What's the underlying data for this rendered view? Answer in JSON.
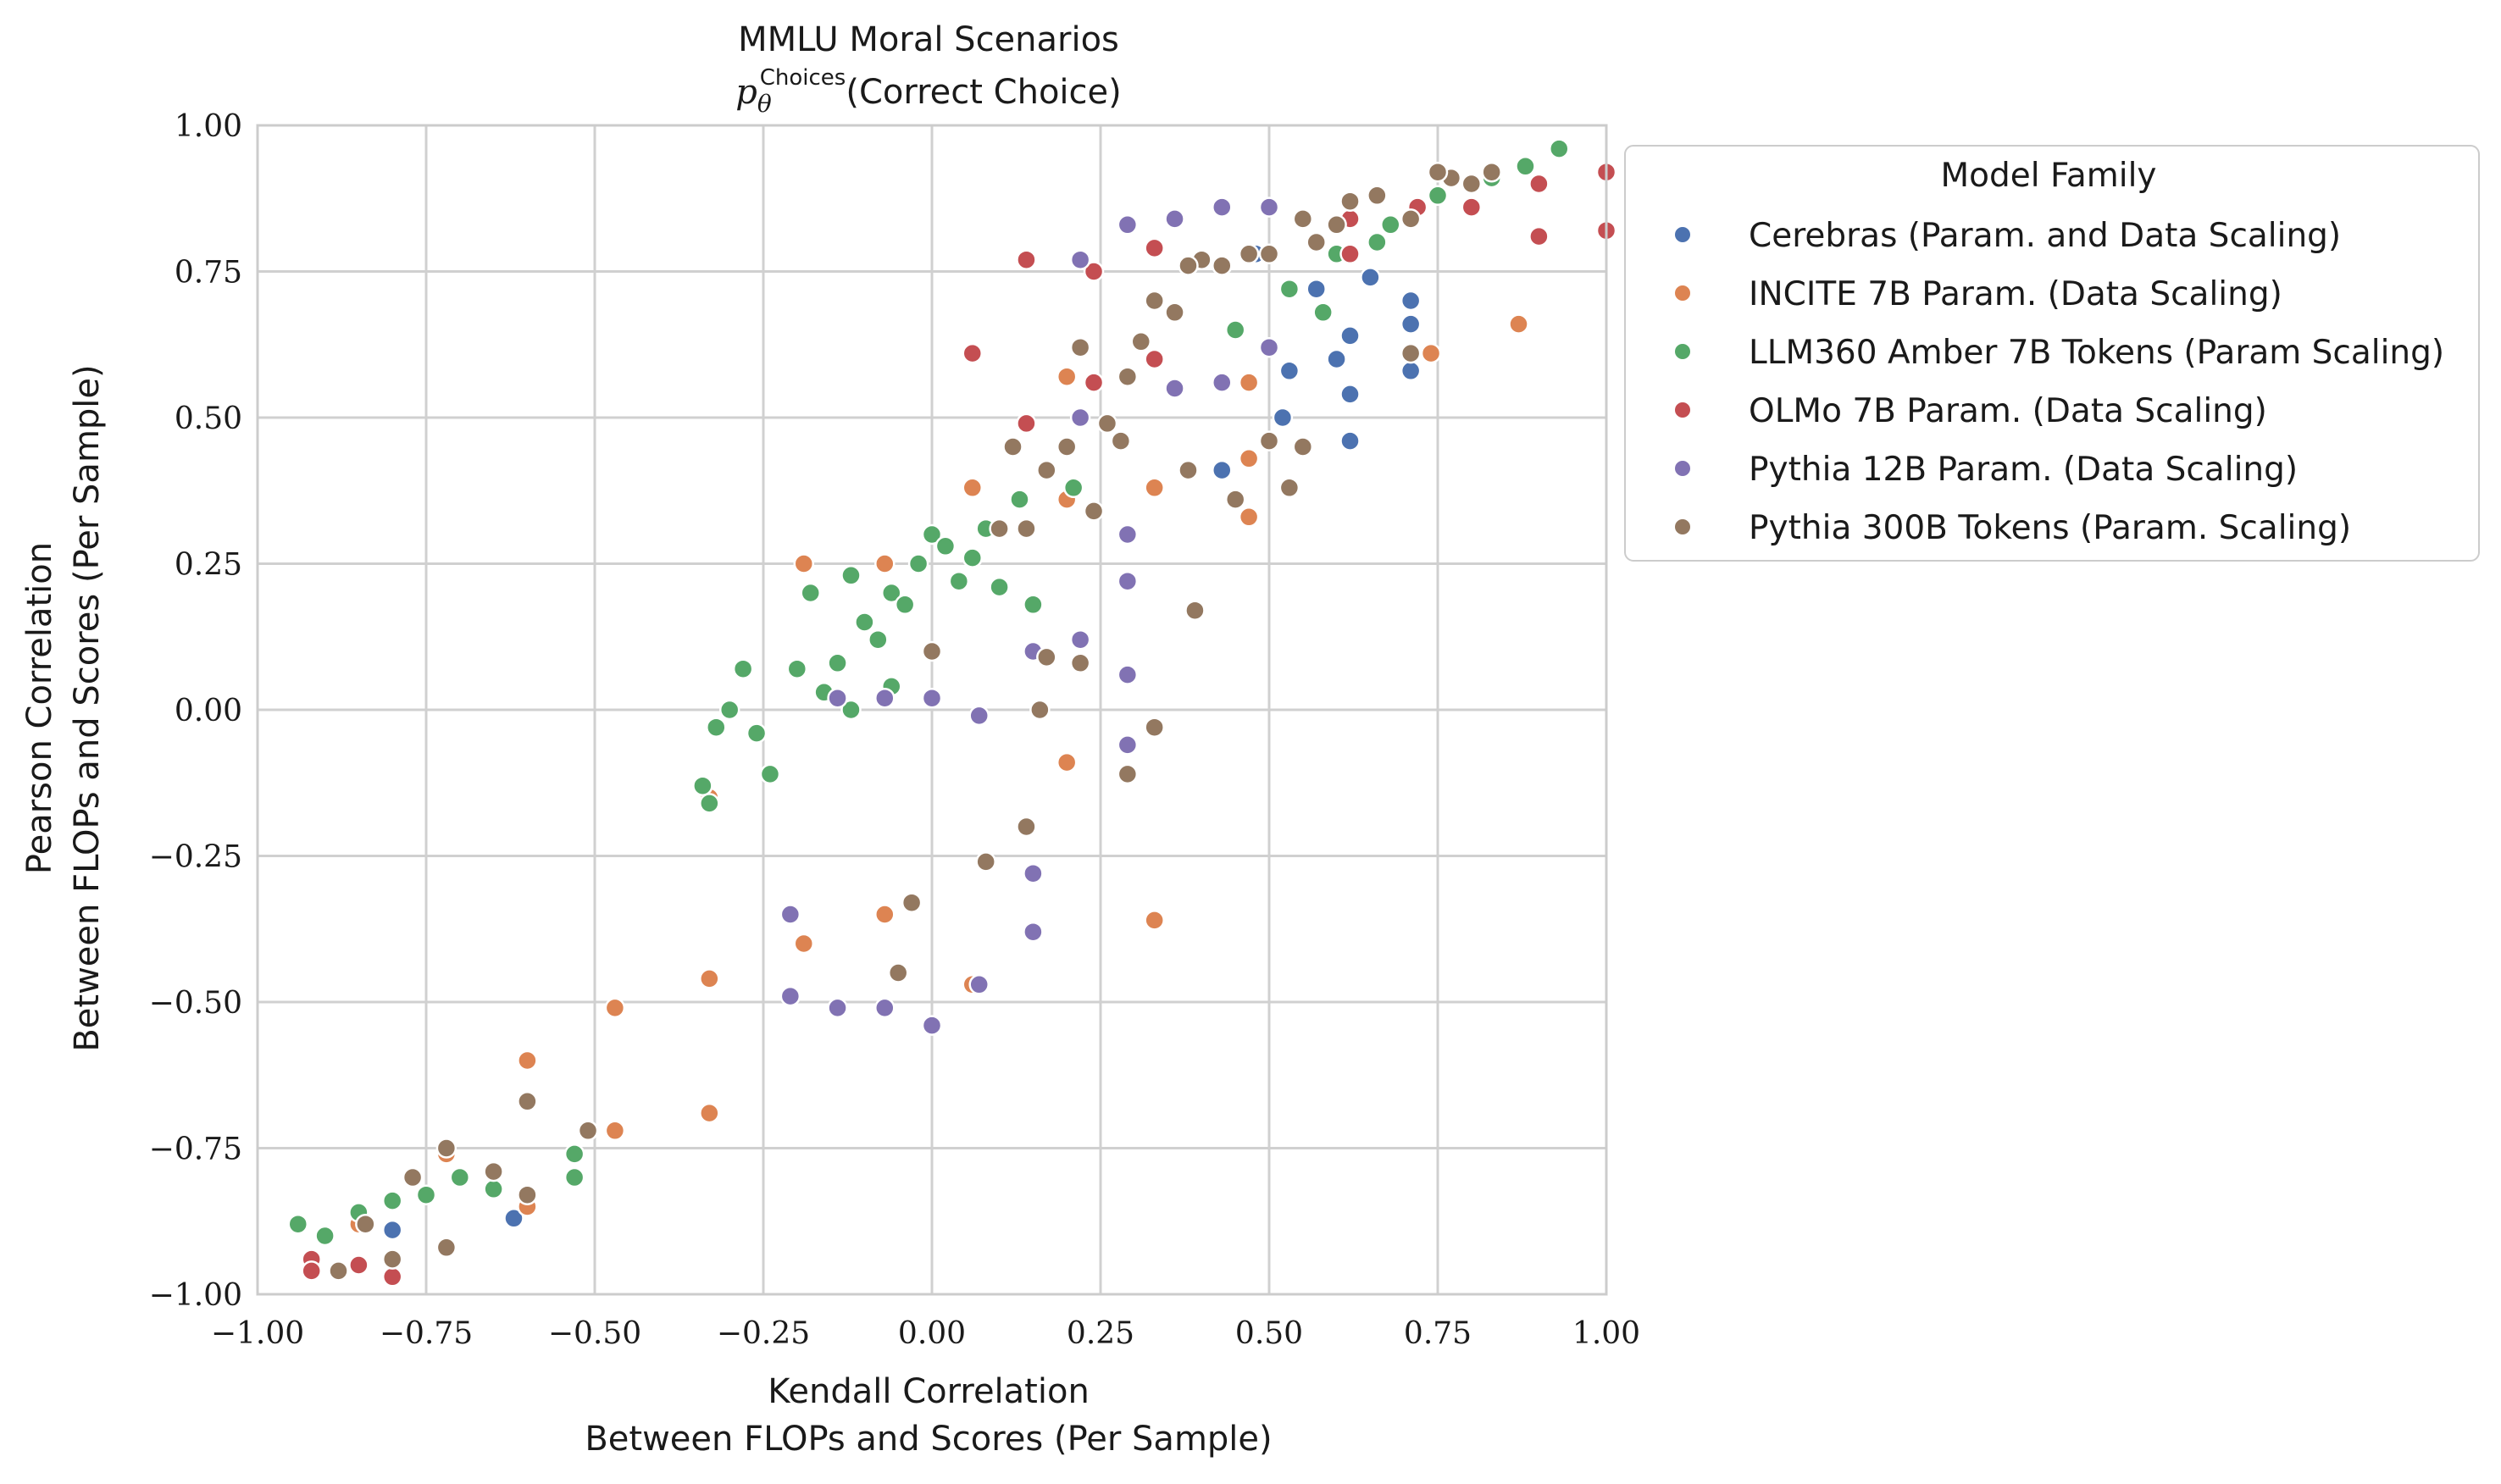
{
  "chart_data": {
    "type": "scatter",
    "title": "MMLU Moral Scenarios",
    "subtitle": "p_θ^Choices(Correct Choice)",
    "subtitle_parts": {
      "symbol": "p",
      "subscript": "θ",
      "superscript": "Choices",
      "text": "(Correct Choice)"
    },
    "xlabel": [
      "Kendall Correlation",
      "Between FLOPs and Scores (Per Sample)"
    ],
    "ylabel": [
      "Pearson Correlation",
      "Between FLOPs and Scores (Per Sample)"
    ],
    "xlim": [
      -1.0,
      1.0
    ],
    "ylim": [
      -1.0,
      1.0
    ],
    "xticks": [
      -1.0,
      -0.75,
      -0.5,
      -0.25,
      0.0,
      0.25,
      0.5,
      0.75,
      1.0
    ],
    "yticks": [
      -1.0,
      -0.75,
      -0.5,
      -0.25,
      0.0,
      0.25,
      0.5,
      0.75,
      1.0
    ],
    "xtick_labels": [
      "−1.00",
      "−0.75",
      "−0.50",
      "−0.25",
      "0.00",
      "0.25",
      "0.50",
      "0.75",
      "1.00"
    ],
    "ytick_labels": [
      "−1.00",
      "−0.75",
      "−0.50",
      "−0.25",
      "0.00",
      "0.25",
      "0.50",
      "0.75",
      "1.00"
    ],
    "grid": true,
    "legend": {
      "title": "Model Family",
      "placement": "outside-right-top"
    },
    "series": [
      {
        "name": "Cerebras (Param. and Data Scaling)",
        "color": "#4c72b0",
        "points": [
          [
            0.71,
            0.7
          ],
          [
            0.71,
            0.66
          ],
          [
            0.71,
            0.58
          ],
          [
            0.62,
            0.54
          ],
          [
            0.62,
            0.46
          ],
          [
            0.43,
            0.41
          ],
          [
            0.52,
            0.5
          ],
          [
            0.6,
            0.6
          ],
          [
            0.62,
            0.64
          ],
          [
            0.57,
            0.72
          ],
          [
            0.48,
            0.78
          ],
          [
            -0.8,
            -0.89
          ],
          [
            -0.62,
            -0.87
          ],
          [
            0.53,
            0.58
          ],
          [
            0.65,
            0.74
          ]
        ]
      },
      {
        "name": "INCITE 7B Param. (Data Scaling)",
        "color": "#dd8452",
        "points": [
          [
            0.87,
            0.66
          ],
          [
            0.74,
            0.61
          ],
          [
            0.2,
            0.57
          ],
          [
            0.2,
            -0.09
          ],
          [
            -0.33,
            -0.46
          ],
          [
            -0.33,
            -0.69
          ],
          [
            -0.47,
            -0.51
          ],
          [
            -0.47,
            -0.72
          ],
          [
            -0.51,
            -0.72
          ],
          [
            -0.6,
            -0.6
          ],
          [
            -0.6,
            -0.85
          ],
          [
            -0.07,
            0.25
          ],
          [
            -0.07,
            -0.35
          ],
          [
            0.06,
            0.38
          ],
          [
            0.06,
            -0.47
          ],
          [
            0.33,
            0.38
          ],
          [
            0.33,
            -0.36
          ],
          [
            0.47,
            0.43
          ],
          [
            0.47,
            0.56
          ],
          [
            -0.19,
            0.25
          ],
          [
            -0.19,
            -0.4
          ],
          [
            -0.33,
            -0.15
          ],
          [
            -0.72,
            -0.76
          ],
          [
            -0.85,
            -0.88
          ],
          [
            0.2,
            0.36
          ],
          [
            0.47,
            0.33
          ]
        ]
      },
      {
        "name": "LLM360 Amber 7B Tokens (Param Scaling)",
        "color": "#55a868",
        "points": [
          [
            0.93,
            0.96
          ],
          [
            0.88,
            0.93
          ],
          [
            0.83,
            0.91
          ],
          [
            0.75,
            0.88
          ],
          [
            0.68,
            0.83
          ],
          [
            0.6,
            0.78
          ],
          [
            0.53,
            0.72
          ],
          [
            0.45,
            0.65
          ],
          [
            -0.94,
            -0.88
          ],
          [
            -0.9,
            -0.9
          ],
          [
            -0.85,
            -0.86
          ],
          [
            -0.8,
            -0.84
          ],
          [
            -0.75,
            -0.83
          ],
          [
            -0.7,
            -0.8
          ],
          [
            -0.65,
            -0.82
          ],
          [
            -0.53,
            -0.76
          ],
          [
            -0.53,
            -0.8
          ],
          [
            -0.34,
            -0.13
          ],
          [
            -0.33,
            -0.16
          ],
          [
            -0.32,
            -0.03
          ],
          [
            -0.3,
            0.0
          ],
          [
            -0.28,
            0.07
          ],
          [
            -0.26,
            -0.04
          ],
          [
            -0.24,
            -0.11
          ],
          [
            -0.2,
            0.07
          ],
          [
            -0.18,
            0.2
          ],
          [
            -0.14,
            0.08
          ],
          [
            -0.12,
            0.23
          ],
          [
            -0.1,
            0.15
          ],
          [
            -0.08,
            0.12
          ],
          [
            -0.06,
            0.2
          ],
          [
            -0.04,
            0.18
          ],
          [
            -0.02,
            0.25
          ],
          [
            0.0,
            0.3
          ],
          [
            0.02,
            0.28
          ],
          [
            0.04,
            0.22
          ],
          [
            0.06,
            0.26
          ],
          [
            0.08,
            0.31
          ],
          [
            0.1,
            0.21
          ],
          [
            0.13,
            0.36
          ],
          [
            0.15,
            0.18
          ],
          [
            0.21,
            0.38
          ],
          [
            -0.06,
            0.04
          ],
          [
            -0.12,
            0.0
          ],
          [
            -0.16,
            0.03
          ],
          [
            0.58,
            0.68
          ],
          [
            0.66,
            0.8
          ]
        ]
      },
      {
        "name": "OLMo 7B Param. (Data Scaling)",
        "color": "#c44e52",
        "points": [
          [
            1.0,
            0.92
          ],
          [
            1.0,
            0.82
          ],
          [
            0.9,
            0.9
          ],
          [
            0.9,
            0.81
          ],
          [
            0.8,
            0.86
          ],
          [
            0.72,
            0.86
          ],
          [
            0.62,
            0.84
          ],
          [
            0.06,
            0.61
          ],
          [
            0.14,
            0.77
          ],
          [
            0.14,
            0.49
          ],
          [
            0.24,
            0.75
          ],
          [
            0.24,
            0.56
          ],
          [
            0.33,
            0.79
          ],
          [
            0.33,
            0.6
          ],
          [
            0.62,
            0.78
          ],
          [
            -0.92,
            -0.94
          ],
          [
            -0.92,
            -0.96
          ],
          [
            -0.8,
            -0.97
          ],
          [
            -0.85,
            -0.95
          ]
        ]
      },
      {
        "name": "Pythia 12B Param. (Data Scaling)",
        "color": "#8172b3",
        "points": [
          [
            0.29,
            0.83
          ],
          [
            0.29,
            0.3
          ],
          [
            0.36,
            0.84
          ],
          [
            0.36,
            0.55
          ],
          [
            0.43,
            0.86
          ],
          [
            0.43,
            0.56
          ],
          [
            0.5,
            0.86
          ],
          [
            0.5,
            0.62
          ],
          [
            0.22,
            0.77
          ],
          [
            0.22,
            0.5
          ],
          [
            0.29,
            0.22
          ],
          [
            0.29,
            0.06
          ],
          [
            0.15,
            0.1
          ],
          [
            0.15,
            -0.38
          ],
          [
            0.07,
            -0.01
          ],
          [
            0.07,
            -0.47
          ],
          [
            0.0,
            0.02
          ],
          [
            0.0,
            -0.54
          ],
          [
            -0.07,
            0.02
          ],
          [
            -0.07,
            -0.51
          ],
          [
            -0.14,
            0.02
          ],
          [
            -0.14,
            -0.51
          ],
          [
            -0.21,
            -0.35
          ],
          [
            -0.21,
            -0.49
          ],
          [
            0.22,
            0.12
          ],
          [
            0.15,
            -0.28
          ],
          [
            0.29,
            -0.06
          ]
        ]
      },
      {
        "name": "Pythia 300B Tokens (Param. Scaling)",
        "color": "#937860",
        "points": [
          [
            0.83,
            0.92
          ],
          [
            0.8,
            0.9
          ],
          [
            0.77,
            0.91
          ],
          [
            0.75,
            0.92
          ],
          [
            0.71,
            0.84
          ],
          [
            0.71,
            0.61
          ],
          [
            0.66,
            0.88
          ],
          [
            0.62,
            0.87
          ],
          [
            0.6,
            0.83
          ],
          [
            0.57,
            0.8
          ],
          [
            0.55,
            0.84
          ],
          [
            0.55,
            0.45
          ],
          [
            0.53,
            0.38
          ],
          [
            0.5,
            0.78
          ],
          [
            0.5,
            0.46
          ],
          [
            0.47,
            0.78
          ],
          [
            0.45,
            0.36
          ],
          [
            0.43,
            0.76
          ],
          [
            0.4,
            0.77
          ],
          [
            0.38,
            0.76
          ],
          [
            0.38,
            0.41
          ],
          [
            0.36,
            0.68
          ],
          [
            0.33,
            0.7
          ],
          [
            0.31,
            0.63
          ],
          [
            0.29,
            0.57
          ],
          [
            0.28,
            0.46
          ],
          [
            0.26,
            0.49
          ],
          [
            0.24,
            0.34
          ],
          [
            0.22,
            0.62
          ],
          [
            0.22,
            0.08
          ],
          [
            0.2,
            0.45
          ],
          [
            0.17,
            0.41
          ],
          [
            0.17,
            0.09
          ],
          [
            0.14,
            0.31
          ],
          [
            0.14,
            -0.2
          ],
          [
            0.12,
            0.45
          ],
          [
            0.1,
            0.31
          ],
          [
            0.08,
            -0.26
          ],
          [
            0.0,
            0.1
          ],
          [
            -0.05,
            -0.45
          ],
          [
            -0.03,
            -0.33
          ],
          [
            0.29,
            -0.11
          ],
          [
            0.33,
            -0.03
          ],
          [
            0.39,
            0.17
          ],
          [
            0.16,
            0.0
          ],
          [
            -0.51,
            -0.72
          ],
          [
            -0.6,
            -0.67
          ],
          [
            -0.6,
            -0.83
          ],
          [
            -0.65,
            -0.79
          ],
          [
            -0.72,
            -0.75
          ],
          [
            -0.72,
            -0.92
          ],
          [
            -0.77,
            -0.8
          ],
          [
            -0.8,
            -0.94
          ],
          [
            -0.84,
            -0.88
          ],
          [
            -0.88,
            -0.96
          ]
        ]
      }
    ]
  }
}
